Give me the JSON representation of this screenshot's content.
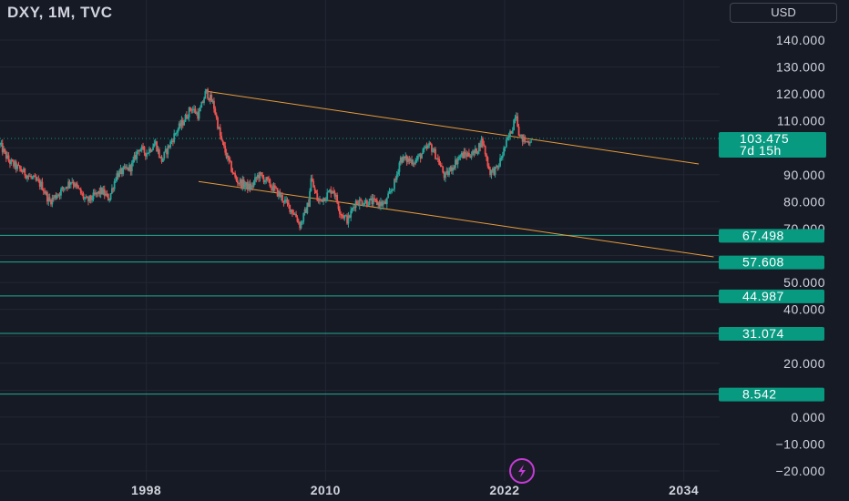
{
  "header": {
    "symbol_title": "DXY, 1M, TVC",
    "currency": "USD"
  },
  "colors": {
    "background": "#161a25",
    "grid": "#232733",
    "up": "#26a69a",
    "down": "#ef5350",
    "trendline": "#e69b3a",
    "level_line": "#22ab94",
    "badge": "#089981",
    "text": "#d1d4dc",
    "pulse_icon": "#c43bd6"
  },
  "chart_data": {
    "type": "candlestick",
    "title": "DXY, 1M, TVC",
    "x_ticks": [
      "1998",
      "2010",
      "2022",
      "2034"
    ],
    "x_tick_years": [
      1998,
      2010,
      2022,
      2034
    ],
    "xlim": [
      1988.2,
      2036.4
    ],
    "ylim": [
      -22,
      145
    ],
    "y_ticks": [
      "140.000",
      "130.000",
      "120.000",
      "110.000",
      "90.000",
      "80.000",
      "70.000",
      "50.000",
      "40.000",
      "20.000",
      "0.000",
      "−10.000",
      "−20.000"
    ],
    "y_tick_values": [
      140,
      130,
      120,
      110,
      90,
      80,
      70,
      50,
      40,
      20,
      0,
      -10,
      -20
    ],
    "last_price": {
      "label": "103.475",
      "value": 103.475,
      "countdown": "7d 15h"
    },
    "horizontal_levels": [
      {
        "label": "67.498",
        "value": 67.498
      },
      {
        "label": "57.608",
        "value": 57.608
      },
      {
        "label": "44.987",
        "value": 44.987
      },
      {
        "label": "31.074",
        "value": 31.074
      },
      {
        "label": "8.542",
        "value": 8.542
      }
    ],
    "trendlines": [
      {
        "name": "upper",
        "points": [
          [
            2002.0,
            121.0
          ],
          [
            2035.0,
            94.0
          ]
        ]
      },
      {
        "name": "lower",
        "points": [
          [
            2001.5,
            87.5
          ],
          [
            2036.0,
            59.5
          ]
        ]
      }
    ],
    "series_path": [
      [
        1988.2,
        101
      ],
      [
        1988.8,
        95
      ],
      [
        1990,
        90
      ],
      [
        1991,
        86
      ],
      [
        1991.5,
        80
      ],
      [
        1992.3,
        84
      ],
      [
        1993,
        88
      ],
      [
        1994,
        80
      ],
      [
        1995,
        84
      ],
      [
        1995.5,
        81
      ],
      [
        1996,
        90
      ],
      [
        1997,
        93
      ],
      [
        1997.5,
        100
      ],
      [
        1998,
        98
      ],
      [
        1998.6,
        102
      ],
      [
        1999,
        95
      ],
      [
        2000,
        106
      ],
      [
        2000.5,
        110
      ],
      [
        2001,
        115
      ],
      [
        2001.5,
        112
      ],
      [
        2002,
        121
      ],
      [
        2002.5,
        116
      ],
      [
        2003,
        103
      ],
      [
        2003.5,
        95
      ],
      [
        2004,
        88
      ],
      [
        2005,
        85
      ],
      [
        2005.5,
        90
      ],
      [
        2006,
        88
      ],
      [
        2007,
        82
      ],
      [
        2008,
        75
      ],
      [
        2008.3,
        71
      ],
      [
        2008.9,
        80
      ],
      [
        2009,
        89
      ],
      [
        2009.5,
        80
      ],
      [
        2010,
        82
      ],
      [
        2010.5,
        85
      ],
      [
        2011,
        76
      ],
      [
        2011.5,
        73
      ],
      [
        2012,
        80
      ],
      [
        2013,
        80
      ],
      [
        2014,
        79
      ],
      [
        2014.7,
        88
      ],
      [
        2015,
        96
      ],
      [
        2016,
        95
      ],
      [
        2017,
        101
      ],
      [
        2017.5,
        96
      ],
      [
        2018,
        89
      ],
      [
        2019,
        97
      ],
      [
        2020,
        98
      ],
      [
        2020.5,
        103
      ],
      [
        2021,
        91
      ],
      [
        2021.5,
        92
      ],
      [
        2022,
        100
      ],
      [
        2022.5,
        107
      ],
      [
        2022.75,
        114
      ],
      [
        2023,
        104
      ],
      [
        2023.5,
        102
      ],
      [
        2023.8,
        103.475
      ]
    ]
  },
  "pulse_icon": "lightning-icon"
}
